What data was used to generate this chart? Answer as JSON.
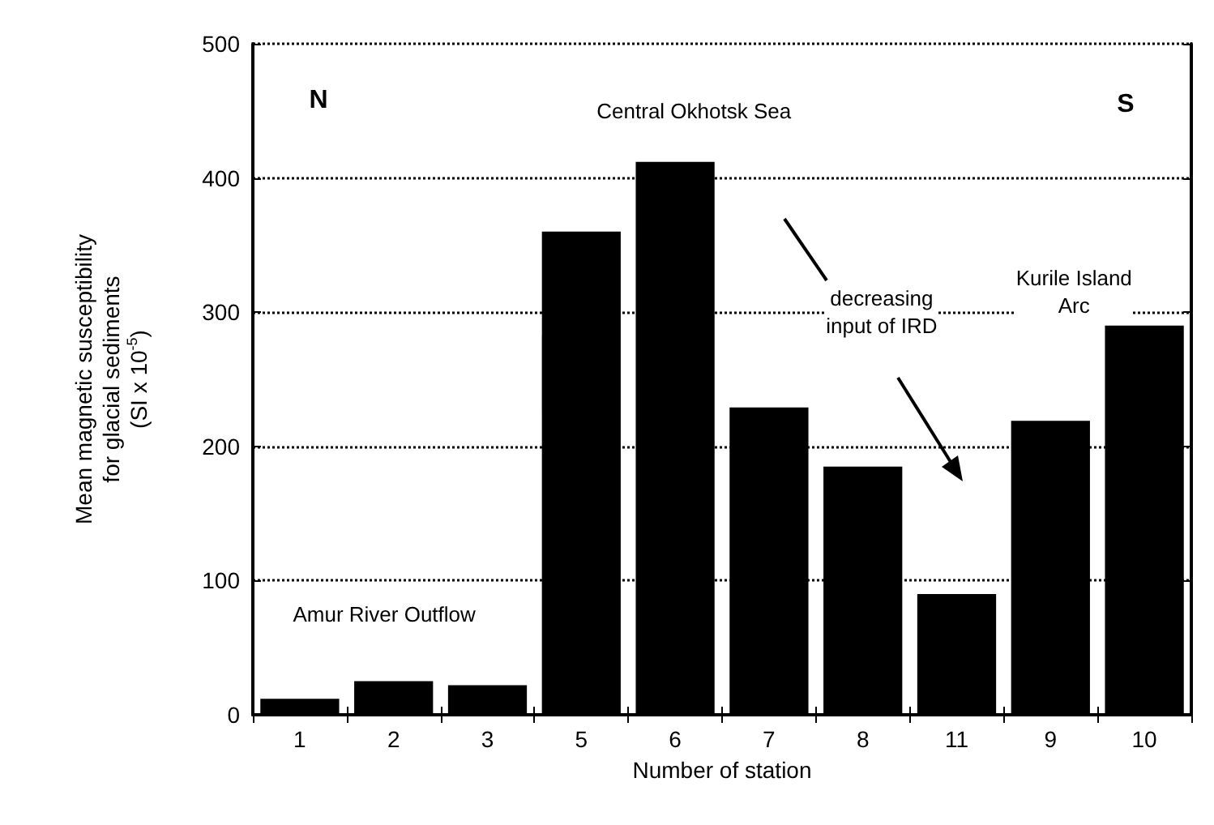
{
  "chart_data": {
    "type": "bar",
    "xlabel": "Number of station",
    "ylabel": "Mean magnetic susceptibility\nfor glacial sediments\n(SI x 10$^{-5}$)",
    "categories": [
      "1",
      "2",
      "3",
      "5",
      "6",
      "7",
      "8",
      "11",
      "9",
      "10"
    ],
    "values": [
      12,
      25,
      22,
      360,
      412,
      229,
      185,
      90,
      219,
      290
    ],
    "color": "#000000",
    "ylim": [
      0,
      500
    ],
    "yticks": [
      0,
      100,
      200,
      300,
      400,
      500
    ],
    "grid": "y",
    "annotations": [
      "N",
      "Central Okhotsk Sea",
      "S",
      "Amur River Outflow",
      "Kurile Island\nArc",
      "decreasing\ninput of IRD"
    ]
  }
}
